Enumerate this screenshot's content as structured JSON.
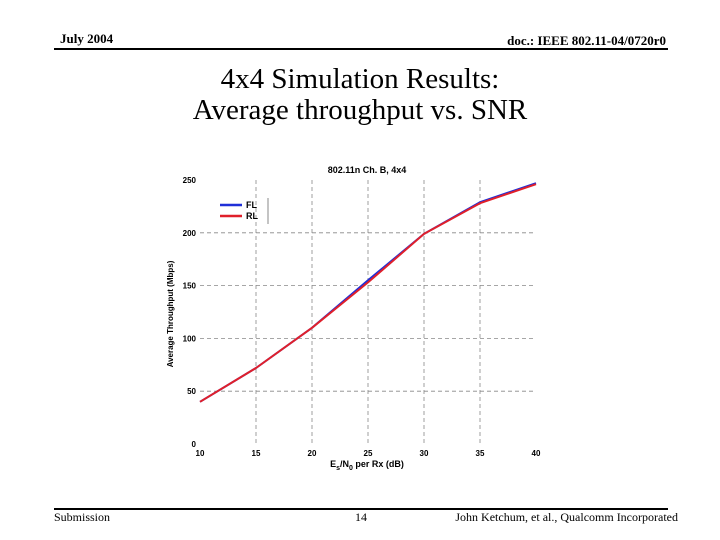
{
  "header": {
    "date": "July 2004",
    "doc_id": "doc.: IEEE 802.11-04/0720r0"
  },
  "slide": {
    "title_line1": "4x4 Simulation Results:",
    "title_line2": "Average throughput vs. SNR"
  },
  "footer": {
    "left": "Submission",
    "page": "14",
    "right": "John Ketchum, et al., Qualcomm Incorporated"
  },
  "chart_data": {
    "type": "line",
    "title": "802.11n Ch. B, 4x4",
    "xlabel_main": "E",
    "xlabel_sub1": "s",
    "xlabel_mid": "/N",
    "xlabel_sub2": "0",
    "xlabel_tail": " per Rx (dB)",
    "ylabel": "Average Throughput (Mbps)",
    "xlim": [
      10,
      40
    ],
    "ylim": [
      0,
      250
    ],
    "x_ticks": [
      10,
      15,
      20,
      25,
      30,
      35,
      40
    ],
    "y_ticks": [
      0,
      50,
      100,
      150,
      200,
      250
    ],
    "grid": "dashed",
    "legend": "top-left",
    "x": [
      10,
      15,
      20,
      25,
      30,
      35,
      40
    ],
    "series": [
      {
        "name": "FL",
        "color": "#1f2fd8",
        "values": [
          40,
          72,
          110,
          155,
          199,
          229,
          247
        ]
      },
      {
        "name": "RL",
        "color": "#e0202a",
        "values": [
          40,
          72,
          110,
          153,
          199,
          228,
          246
        ]
      }
    ]
  }
}
